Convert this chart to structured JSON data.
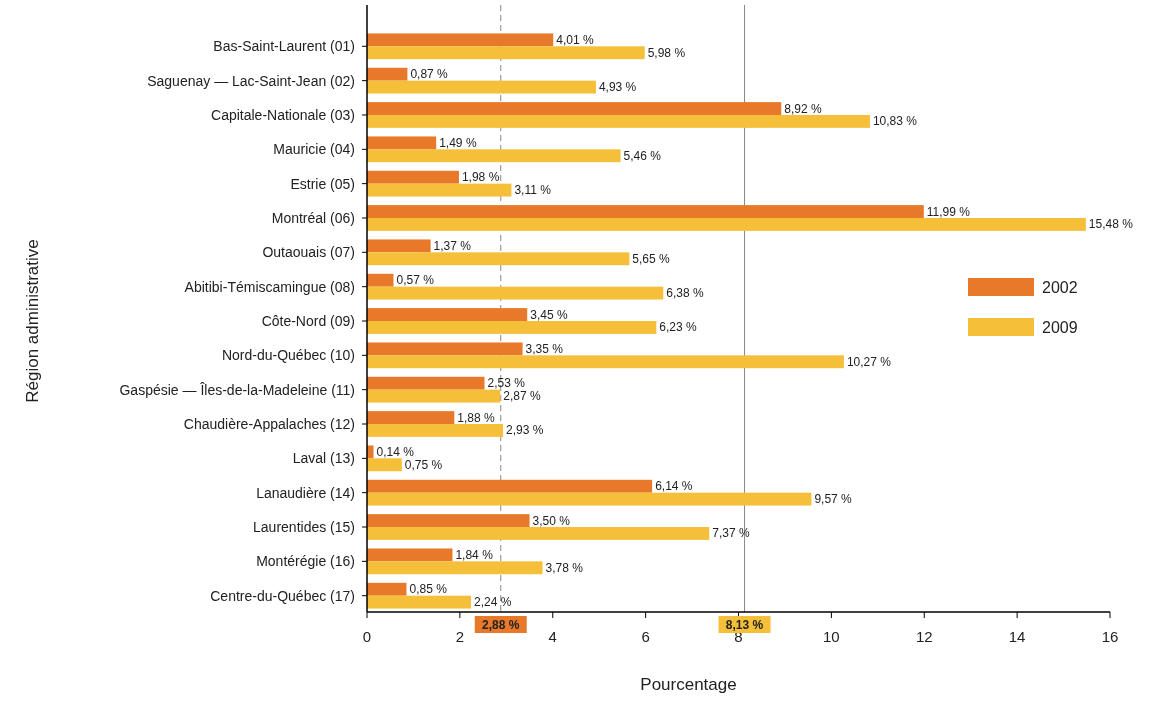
{
  "chart_data": {
    "type": "bar",
    "orientation": "horizontal",
    "xlabel": "Pourcentage",
    "ylabel": "Région administrative",
    "categories": [
      "Bas-Saint-Laurent (01)",
      "Saguenay — Lac-Saint-Jean (02)",
      "Capitale-Nationale (03)",
      "Mauricie (04)",
      "Estrie (05)",
      "Montréal (06)",
      "Outaouais (07)",
      "Abitibi-Témiscamingue (08)",
      "Côte-Nord (09)",
      "Nord-du-Québec (10)",
      "Gaspésie — Îles-de-la-Madeleine (11)",
      "Chaudière-Appalaches (12)",
      "Laval (13)",
      "Lanaudière (14)",
      "Laurentides (15)",
      "Montérégie (16)",
      "Centre-du-Québec (17)"
    ],
    "series": [
      {
        "name": "2002",
        "color": "#e8792b",
        "values": [
          4.01,
          0.87,
          8.92,
          1.49,
          1.98,
          11.99,
          1.37,
          0.57,
          3.45,
          3.35,
          2.53,
          1.88,
          0.14,
          6.14,
          3.5,
          1.84,
          0.85
        ],
        "value_labels": [
          "4,01 %",
          "0,87 %",
          "8,92 %",
          "1,49 %",
          "1,98 %",
          "11,99 %",
          "1,37 %",
          "0,57 %",
          "3,45 %",
          "3,35 %",
          "2,53 %",
          "1,88 %",
          "0,14 %",
          "6,14 %",
          "3,50 %",
          "1,84 %",
          "0,85 %"
        ]
      },
      {
        "name": "2009",
        "color": "#f5bf3a",
        "values": [
          5.98,
          4.93,
          10.83,
          5.46,
          3.11,
          15.48,
          5.65,
          6.38,
          6.23,
          10.27,
          2.87,
          2.93,
          0.75,
          9.57,
          7.37,
          3.78,
          2.24
        ],
        "value_labels": [
          "5,98 %",
          "4,93 %",
          "10,83 %",
          "5,46 %",
          "3,11 %",
          "15,48 %",
          "5,65 %",
          "6,38 %",
          "6,23 %",
          "10,27 %",
          "2,87 %",
          "2,93 %",
          "0,75 %",
          "9,57 %",
          "7,37 %",
          "3,78 %",
          "2,24 %"
        ]
      }
    ],
    "xlim": [
      0,
      16
    ],
    "xticks": [
      0,
      2,
      4,
      6,
      8,
      10,
      12,
      14,
      16
    ],
    "ref_lines": [
      {
        "axis": "x",
        "value": 2.88,
        "label": "2,88 %",
        "color": "#888888",
        "line_style": "dashed"
      },
      {
        "axis": "x",
        "value": 8.13,
        "label": "8,13 %",
        "color": "#888888",
        "line_style": "solid"
      }
    ],
    "legend": "right",
    "grid": false
  }
}
